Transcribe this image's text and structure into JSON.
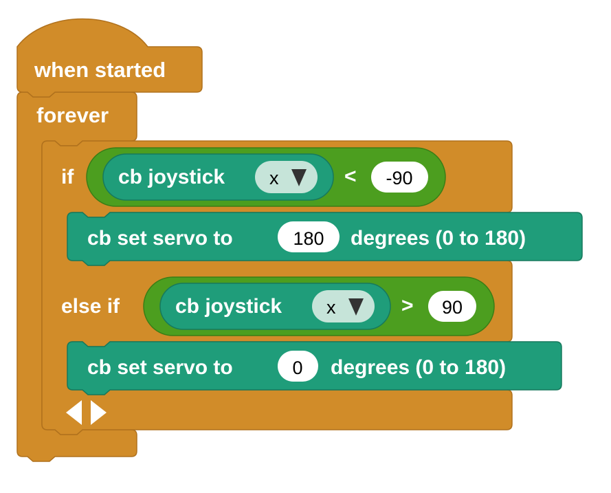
{
  "colors": {
    "control": "#d18c29",
    "control_border": "#b0711d",
    "operator": "#4c9e1f",
    "operator_border": "#3a7d16",
    "sensor": "#1f9d7a",
    "sensor_border": "#16795d",
    "field": "#ffffff",
    "dropdown": "#c6e4d9"
  },
  "hat": {
    "label": "when started"
  },
  "forever": {
    "label": "forever"
  },
  "if_block": {
    "if_label": "if",
    "else_if_label": "else if",
    "expand_icon": "arrow-left-right-icon",
    "condition1": {
      "reporter": "cb joystick",
      "axis": "x",
      "operator": "<",
      "value": "-90"
    },
    "action1": {
      "prefix": "cb set servo to",
      "value": "180",
      "suffix": "degrees (0 to 180)"
    },
    "condition2": {
      "reporter": "cb joystick",
      "axis": "x",
      "operator": ">",
      "value": "90"
    },
    "action2": {
      "prefix": "cb set servo to",
      "value": "0",
      "suffix": "degrees (0 to 180)"
    }
  }
}
